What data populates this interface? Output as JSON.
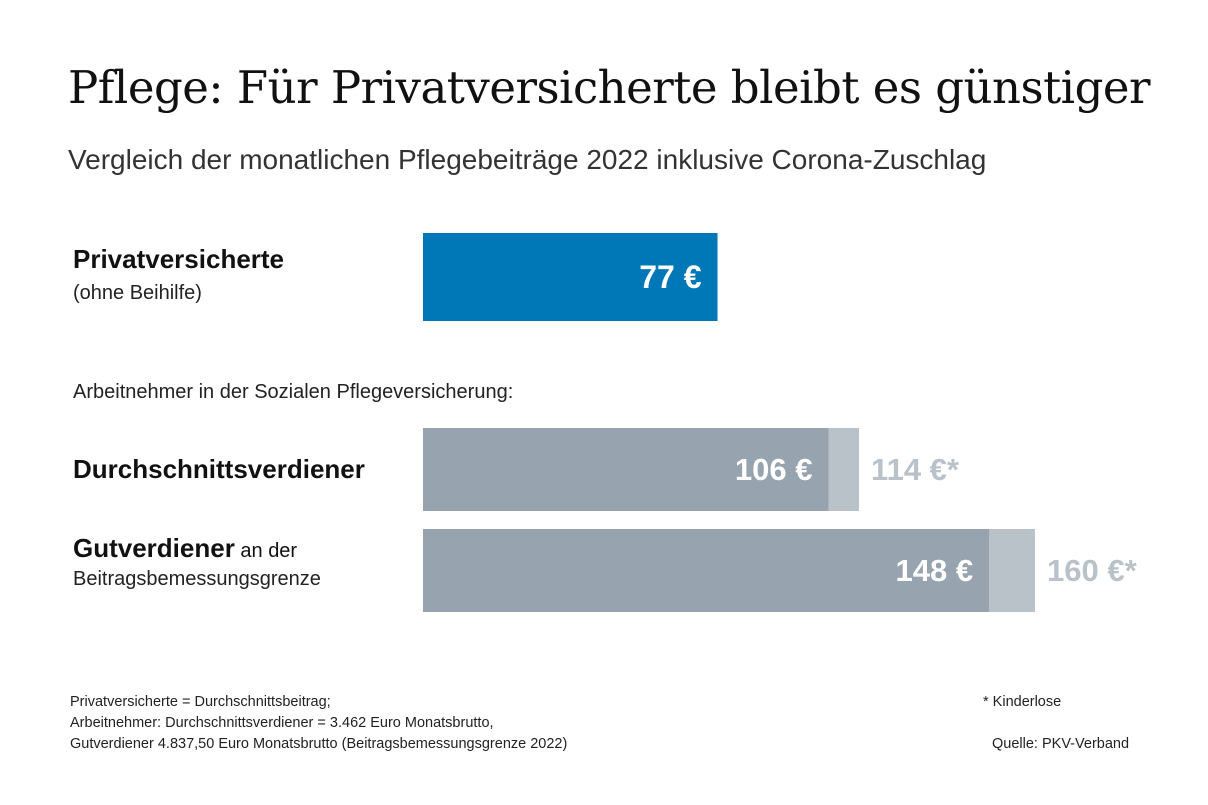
{
  "chart_data": {
    "type": "bar",
    "orientation": "horizontal",
    "title": "Pflege: Für Privatversicherte bleibt es günstiger",
    "subtitle": "Vergleich der monatlichen Pflegebeiträge 2022 inklusive Corona-Zuschlag",
    "section_label": "Arbeitnehmer in der Sozialen Pflegeversicherung:",
    "categories": [
      {
        "label": "Privatversicherte",
        "sublabel": "(ohne Beihilfe)"
      },
      {
        "label": "Durchschnittsverdiener",
        "sublabel": ""
      },
      {
        "label": "Gutverdiener",
        "label_suffix": " an der",
        "sublabel": "Beitragsbemessungsgrenze"
      }
    ],
    "series": [
      {
        "values": [
          77,
          106,
          148
        ],
        "labels": [
          "77 €",
          "106 €",
          "148 €"
        ],
        "colors": [
          "#0077b6",
          "#97a4af",
          "#97a4af"
        ]
      },
      {
        "values": [
          null,
          114,
          160
        ],
        "labels": [
          "",
          "114 €*",
          "160 €*"
        ],
        "colors": [
          null,
          "#b9c1c9",
          "#b9c1c9"
        ]
      }
    ],
    "value_label_color_inside": "#ffffff",
    "value_label_color_outside": "#b9c1c9"
  },
  "footnote": {
    "lines": [
      "Privatversicherte = Durchschnittsbeitrag;",
      "Arbeitnehmer: Durchschnittsverdiener = 3.462 Euro Monatsbrutto,",
      "Gutverdiener 4.837,50 Euro Monatsbrutto (Beitragsbemessungsgrenze 2022)"
    ],
    "kinderlose": "* Kinderlose",
    "source": "Quelle: PKV-Verband"
  }
}
